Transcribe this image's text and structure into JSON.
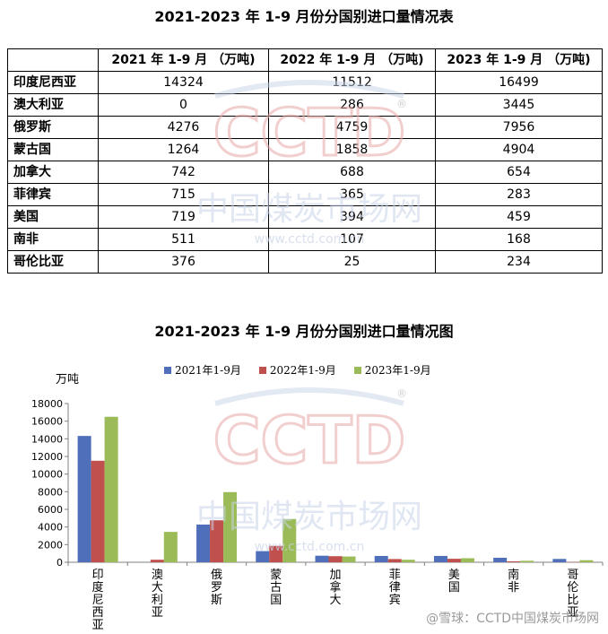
{
  "table": {
    "title": "2021-2023 年 1-9 月份分国别进口量情况表",
    "headers": [
      "",
      "2021 年 1-9 月 （万吨)",
      "2022 年 1-9 月 （万吨)",
      "2023 年 1-9 月 （万吨)"
    ],
    "rows": [
      {
        "country": "印度尼西亚",
        "v2021": "14324",
        "v2022": "11512",
        "v2023": "16499"
      },
      {
        "country": "澳大利亚",
        "v2021": "0",
        "v2022": "286",
        "v2023": "3445"
      },
      {
        "country": "俄罗斯",
        "v2021": "4276",
        "v2022": "4759",
        "v2023": "7956"
      },
      {
        "country": "蒙古国",
        "v2021": "1264",
        "v2022": "1858",
        "v2023": "4904"
      },
      {
        "country": "加拿大",
        "v2021": "742",
        "v2022": "688",
        "v2023": "654"
      },
      {
        "country": "菲律宾",
        "v2021": "715",
        "v2022": "365",
        "v2023": "283"
      },
      {
        "country": "美国",
        "v2021": "719",
        "v2022": "394",
        "v2023": "459"
      },
      {
        "country": "南非",
        "v2021": "511",
        "v2022": "107",
        "v2023": "168"
      },
      {
        "country": "哥伦比亚",
        "v2021": "376",
        "v2022": "25",
        "v2023": "234"
      }
    ]
  },
  "chart_data": {
    "type": "bar",
    "title": "2021-2023 年 1-9 月份分国别进口量情况图",
    "ylabel": "万吨",
    "xlabel": "",
    "ylim": [
      0,
      18000
    ],
    "yticks": [
      "0",
      "2000",
      "4000",
      "6000",
      "8000",
      "10000",
      "12000",
      "14000",
      "16000",
      "18000"
    ],
    "categories": [
      "印度尼西亚",
      "澳大利亚",
      "俄罗斯",
      "蒙古国",
      "加拿大",
      "菲律宾",
      "美国",
      "南非",
      "哥伦比亚"
    ],
    "series": [
      {
        "name": "2021年1-9月",
        "color": "#4f6fba",
        "values": [
          14324,
          0,
          4276,
          1264,
          742,
          715,
          719,
          511,
          376
        ]
      },
      {
        "name": "2022年1-9月",
        "color": "#c0504d",
        "values": [
          11512,
          286,
          4759,
          1858,
          688,
          365,
          394,
          107,
          25
        ]
      },
      {
        "name": "2023年1-9月",
        "color": "#9bbb59",
        "values": [
          16499,
          3445,
          7956,
          4904,
          654,
          283,
          459,
          168,
          234
        ]
      }
    ],
    "legend_position": "top",
    "grid": false
  },
  "watermark": {
    "logo": "CCTD",
    "name": "中国煤炭市场网",
    "url": "www.cctd.com.cn",
    "registered": "®"
  },
  "footer": {
    "text": "@雪球：CCTD中国煤炭市场网"
  }
}
